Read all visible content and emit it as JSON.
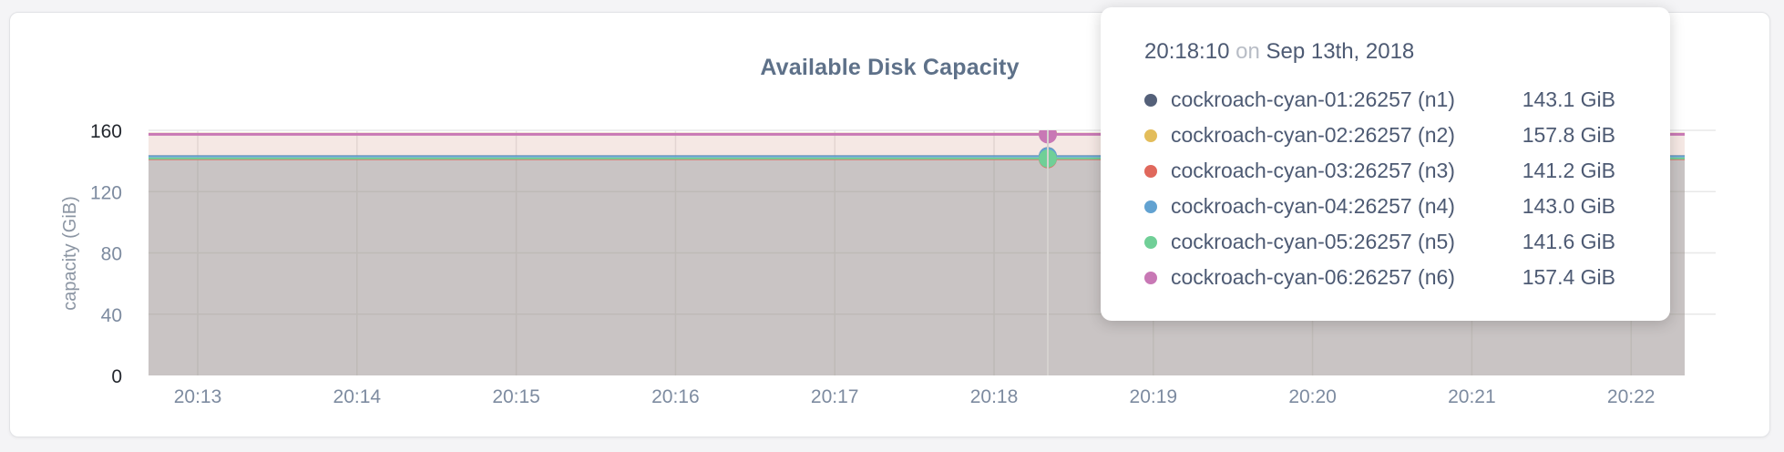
{
  "page": {
    "background": "#f4f4f6",
    "panel_background": "#ffffff"
  },
  "panel": {
    "title": "Available Disk Capacity"
  },
  "chart_data": {
    "type": "area",
    "title": "Available Disk Capacity",
    "xlabel": "",
    "ylabel": "capacity (GiB)",
    "ylim": [
      0,
      160
    ],
    "yticks": [
      0,
      40,
      80,
      120,
      160
    ],
    "ytick_emphasized": [
      0,
      160
    ],
    "xticks": [
      "20:13",
      "20:14",
      "20:15",
      "20:16",
      "20:17",
      "20:18",
      "20:19",
      "20:20",
      "20:21",
      "20:22"
    ],
    "grid": true,
    "legend_position": "tooltip-only",
    "fill_opacity": 0.12,
    "series": [
      {
        "name": "cockroach-cyan-01:26257 (n1)",
        "color": "#546079",
        "value": 143.1
      },
      {
        "name": "cockroach-cyan-02:26257 (n2)",
        "color": "#e3bd5b",
        "value": 157.8
      },
      {
        "name": "cockroach-cyan-03:26257 (n3)",
        "color": "#e0685c",
        "value": 141.2
      },
      {
        "name": "cockroach-cyan-04:26257 (n4)",
        "color": "#62a2d1",
        "value": 143.0
      },
      {
        "name": "cockroach-cyan-05:26257 (n5)",
        "color": "#70cf97",
        "value": 141.6
      },
      {
        "name": "cockroach-cyan-06:26257 (n6)",
        "color": "#c878b5",
        "value": 157.4
      }
    ],
    "hover": {
      "time": "20:18:10",
      "between_ticks": [
        "20:18",
        "20:19"
      ]
    },
    "colors": {
      "grid": "#e8e8e8",
      "guideline": "#d5d2cf",
      "axis_text": "#7d8ba0",
      "axis_text_emphasized": "#23272e",
      "axis_title_text": "#8b95a3"
    }
  },
  "tooltip": {
    "time": "20:18:10",
    "on_word": "on",
    "date": "Sep 13th, 2018",
    "rows": [
      {
        "name": "cockroach-cyan-01:26257 (n1)",
        "value": "143.1 GiB",
        "color": "#546079"
      },
      {
        "name": "cockroach-cyan-02:26257 (n2)",
        "value": "157.8 GiB",
        "color": "#e3bd5b"
      },
      {
        "name": "cockroach-cyan-03:26257 (n3)",
        "value": "141.2 GiB",
        "color": "#e0685c"
      },
      {
        "name": "cockroach-cyan-04:26257 (n4)",
        "value": "143.0 GiB",
        "color": "#62a2d1"
      },
      {
        "name": "cockroach-cyan-05:26257 (n5)",
        "value": "141.6 GiB",
        "color": "#70cf97"
      },
      {
        "name": "cockroach-cyan-06:26257 (n6)",
        "value": "157.4 GiB",
        "color": "#c878b5"
      }
    ]
  }
}
